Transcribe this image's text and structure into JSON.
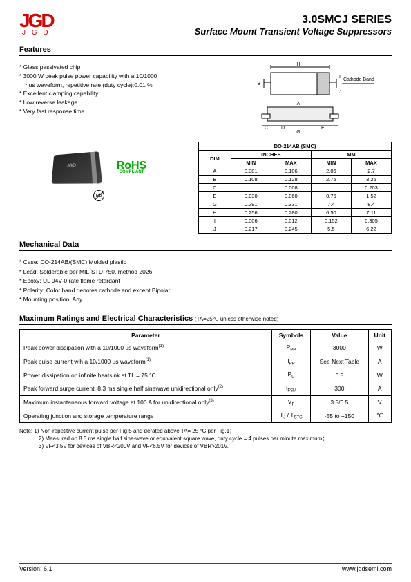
{
  "header": {
    "logo_mark": "JGD",
    "logo_text": "J G D",
    "title": "3.0SMCJ SERIES",
    "subtitle": "Surface Mount Transient Voltage Suppressors"
  },
  "features": {
    "title": "Features",
    "items": [
      "Glass passivated chip",
      "3000 W peak pulse power capability with a 10/1000",
      "  us waveform, repetitive rate (duty cycle):0.01 %",
      "Excellent clamping capability",
      "Low reverse leakage",
      "Very fast response time"
    ]
  },
  "diagram": {
    "cathode_label": "Cathode Band",
    "dims": [
      "H",
      "B",
      "I",
      "J",
      "A",
      "C",
      "D",
      "E",
      "G"
    ]
  },
  "rohs": {
    "main": "RoHS",
    "sub": "COMPLIANT"
  },
  "pb": "Pb",
  "dim_table": {
    "caption": "DO-214AB (SMC)",
    "head_dim": "DIM",
    "head_in": "INCHES",
    "head_mm": "MM",
    "head_min": "MIN",
    "head_max": "MAX",
    "rows": [
      [
        "A",
        "0.081",
        "0.106",
        "2.06",
        "2.7"
      ],
      [
        "B",
        "0.108",
        "0.128",
        "2.75",
        "3.25"
      ],
      [
        "C",
        "",
        "0.008",
        "",
        "0.203"
      ],
      [
        "E",
        "0.030",
        "0.060",
        "0.76",
        "1.52"
      ],
      [
        "G",
        "0.291",
        "0.331",
        "7.4",
        "8.4"
      ],
      [
        "H",
        "0.256",
        "0.280",
        "6.50",
        "7.11"
      ],
      [
        "I",
        "0.006",
        "0.012",
        "0.152",
        "0.305"
      ],
      [
        "J",
        "0.217",
        "0.245",
        "5.5",
        "6.22"
      ]
    ]
  },
  "mech": {
    "title": "Mechanical Data",
    "items": [
      "Case: DO-214AB/(SMC) Molded plastic",
      "Lead: Solderable per MIL-STD-750, method 2026",
      "Epoxy: UL 94V-0 rate flame retardant",
      "Polarity: Color band denotes cathode end except Bipolar",
      "Mounting position: Any"
    ]
  },
  "ratings": {
    "title": "Maximum Ratings and Electrical Characteristics",
    "cond": "(TA=25℃ unless otherwise noted)",
    "head": [
      "Parameter",
      "Symbols",
      "Value",
      "Unit"
    ],
    "rows": [
      {
        "p": "Peak power dissipation with a 10/1000 us waveform",
        "sup": "(1)",
        "s": "PPP",
        "v": "3000",
        "u": "W"
      },
      {
        "p": "Peak pulse current wih a 10/1000 us waveform",
        "sup": "(1)",
        "s": "IPP",
        "v": "See Next Table",
        "u": "A"
      },
      {
        "p": "Power dissipation on infinite heatsink at TL = 75 °C",
        "sup": "",
        "s": "PD",
        "v": "6.5",
        "u": "W"
      },
      {
        "p": "Peak forward surge current, 8.3 ms single half sinewave unidirectional only",
        "sup": "(2)",
        "s": "IFSM",
        "v": "300",
        "u": "A"
      },
      {
        "p": "Maximum instantaneous forward voltage at 100 A for unidirectional only",
        "sup": "(3)",
        "s": "VF",
        "v": "3.5/6.5",
        "u": "V"
      },
      {
        "p": "Operating junction and storage temperature range",
        "sup": "",
        "s": "TJ / TSTG",
        "v": "-55 to +150",
        "u": "℃"
      }
    ]
  },
  "notes": {
    "l1": "Note: 1) Non-repetitive current pulse per Fig.5 and derated above TA= 25 °C per Fig.1；",
    "l2": "2) Measured on 8.3 ms single half sine-wave or equivalent square wave, duty cycle = 4 pulses per minute maximum；",
    "l3": "3) VF<3.5V for devices of VBR<200V and VF<6.5V for devices of VBR>201V."
  },
  "footer": {
    "version": "Version: 6.1",
    "url": "www.jgdsemi.com"
  }
}
